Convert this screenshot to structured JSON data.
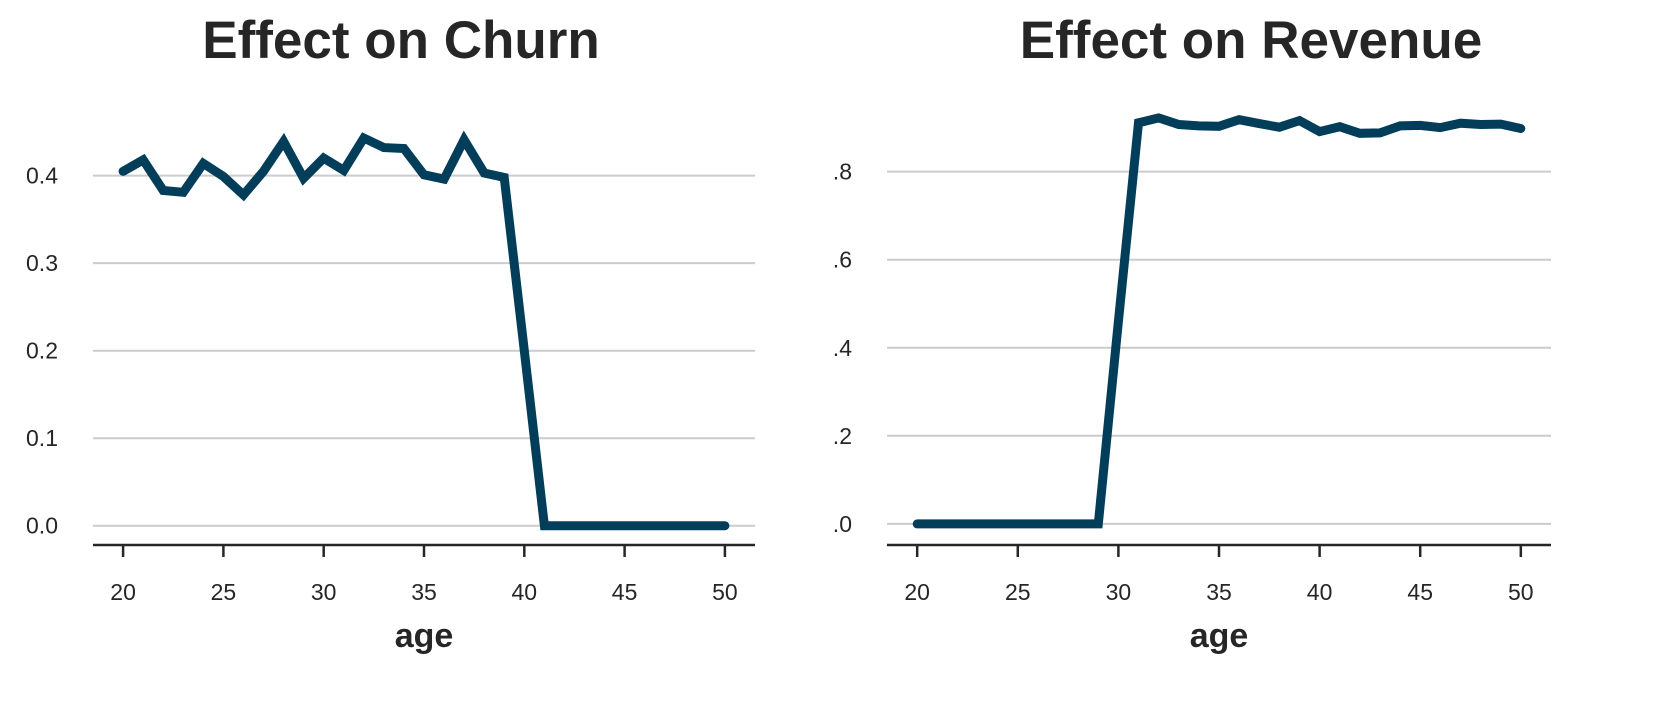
{
  "chart_data": [
    {
      "type": "line",
      "title": "Effect on Churn",
      "xlabel": "age",
      "ylabel": "",
      "xlim": [
        18.5,
        51.5
      ],
      "ylim": [
        -0.022,
        0.475
      ],
      "x_ticks": [
        20,
        25,
        30,
        35,
        40,
        45,
        50
      ],
      "x_tick_labels": [
        "20",
        "25",
        "30",
        "35",
        "40",
        "45",
        "50"
      ],
      "y_ticks": [
        0.0,
        0.1,
        0.2,
        0.3,
        0.4
      ],
      "y_tick_labels": [
        "0.0",
        "0.1",
        "0.2",
        "0.3",
        "0.4"
      ],
      "grid": "horizontal",
      "color": "#023e5a",
      "series": [
        {
          "x": [
            20,
            21,
            22,
            23,
            24,
            25,
            26,
            27,
            28,
            29,
            30,
            31,
            32,
            33,
            34,
            35,
            36,
            37,
            38,
            39,
            40,
            41,
            42,
            43,
            44,
            45,
            46,
            47,
            48,
            49,
            50
          ],
          "values": [
            0.405,
            0.418,
            0.383,
            0.381,
            0.414,
            0.399,
            0.378,
            0.405,
            0.439,
            0.397,
            0.42,
            0.406,
            0.443,
            0.432,
            0.431,
            0.401,
            0.396,
            0.441,
            0.403,
            0.398,
            0.2,
            0.0,
            0.0,
            0.0,
            0.0,
            0.0,
            0.0,
            0.0,
            0.0,
            0.0,
            0.0
          ]
        }
      ]
    },
    {
      "type": "line",
      "title": "Effect on Revenue",
      "xlabel": "age",
      "ylabel": "",
      "xlim": [
        18.5,
        51.5
      ],
      "ylim": [
        -0.048,
        0.94
      ],
      "x_ticks": [
        20,
        25,
        30,
        35,
        40,
        45,
        50
      ],
      "x_tick_labels": [
        "20",
        "25",
        "30",
        "35",
        "40",
        "45",
        "50"
      ],
      "y_ticks": [
        0.0,
        0.2,
        0.4,
        0.6,
        0.8
      ],
      "y_tick_labels": [
        "0.0",
        "0.2",
        "0.4",
        "0.6",
        "0.8"
      ],
      "grid": "horizontal",
      "color": "#023e5a",
      "series": [
        {
          "x": [
            20,
            21,
            22,
            23,
            24,
            25,
            26,
            27,
            28,
            29,
            30,
            31,
            32,
            33,
            34,
            35,
            36,
            37,
            38,
            39,
            40,
            41,
            42,
            43,
            44,
            45,
            46,
            47,
            48,
            49,
            50
          ],
          "values": [
            0.0,
            0.0,
            0.0,
            0.0,
            0.0,
            0.0,
            0.0,
            0.0,
            0.0,
            0.0,
            0.46,
            0.911,
            0.922,
            0.907,
            0.904,
            0.903,
            0.918,
            0.909,
            0.901,
            0.916,
            0.891,
            0.902,
            0.887,
            0.888,
            0.904,
            0.905,
            0.9,
            0.91,
            0.907,
            0.908,
            0.898
          ]
        }
      ]
    }
  ]
}
